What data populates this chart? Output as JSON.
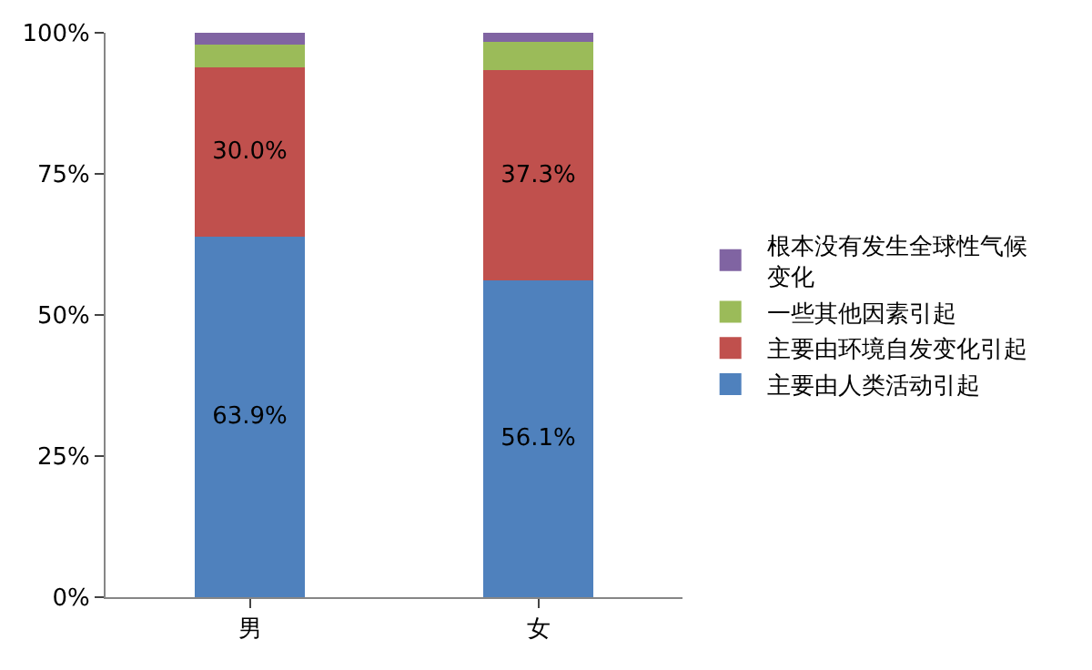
{
  "chart_data": {
    "type": "bar",
    "stacked": true,
    "categories": [
      "男",
      "女"
    ],
    "series": [
      {
        "name": "主要由人类活动引起",
        "color": "#4f81bd",
        "values": [
          63.9,
          56.1
        ],
        "value_labels": [
          "63.9%",
          "56.1%"
        ]
      },
      {
        "name": "主要由环境自发变化引起",
        "color": "#c0504d",
        "values": [
          30.0,
          37.3
        ],
        "value_labels": [
          "30.0%",
          "37.3%"
        ]
      },
      {
        "name": "一些其他因素引起",
        "color": "#9bbb59",
        "values": [
          4.0,
          5.0
        ]
      },
      {
        "name": "根本没有发生全球性气候变化",
        "color": "#8064a2",
        "values": [
          2.1,
          1.6
        ]
      }
    ],
    "ylim": [
      0,
      100
    ],
    "yticks": [
      {
        "value": 0,
        "label": "0%"
      },
      {
        "value": 25,
        "label": "25%"
      },
      {
        "value": 50,
        "label": "50%"
      },
      {
        "value": 75,
        "label": "75%"
      },
      {
        "value": 100,
        "label": "100%"
      }
    ],
    "grid": false,
    "legend": "right"
  }
}
